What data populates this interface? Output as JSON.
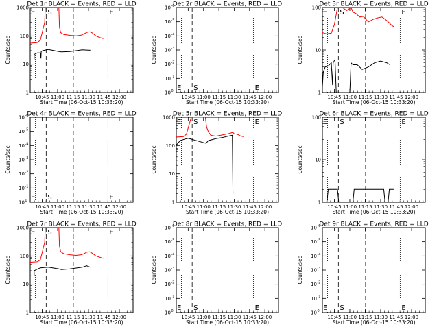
{
  "chart_data": [
    {
      "type": "line",
      "title": "Det 1r BLACK = Events, RED = LLD",
      "xlabel": "Start Time (06-Oct-15 10:33:20)",
      "ylabel": "Counts/sec",
      "yscale": "log",
      "ylim": [
        1,
        1000
      ],
      "yticks": [
        {
          "v": 1,
          "t": "1"
        },
        {
          "v": 10,
          "t": "10"
        },
        {
          "v": 100,
          "t": "100"
        },
        {
          "v": 1000,
          "t": "1000"
        }
      ],
      "xticks": [
        "10:45",
        "11:00",
        "11:15",
        "11:30",
        "11:45",
        "12:00"
      ],
      "markers": {
        "S": "S",
        "E": "E"
      },
      "series": [
        {
          "color": "#ff0000",
          "values": [
            [
              10.55,
              55
            ],
            [
              10.67,
              58
            ],
            [
              10.72,
              70
            ],
            [
              10.79,
              300
            ],
            [
              10.8,
              1000
            ],
            [
              11.02,
              1000
            ],
            [
              11.03,
              200
            ],
            [
              11.05,
              130
            ],
            [
              11.1,
              112
            ],
            [
              11.2,
              105
            ],
            [
              11.3,
              100
            ],
            [
              11.38,
              106
            ],
            [
              11.42,
              116
            ],
            [
              11.47,
              132
            ],
            [
              11.52,
              140
            ],
            [
              11.56,
              128
            ],
            [
              11.62,
              100
            ],
            [
              11.68,
              88
            ],
            [
              11.74,
              80
            ]
          ]
        },
        {
          "color": "#000000",
          "values": [
            [
              10.62,
              15
            ],
            [
              10.62,
              22
            ],
            [
              10.67,
              25
            ],
            [
              10.72,
              25
            ],
            [
              10.73,
              16
            ],
            [
              10.735,
              28
            ],
            [
              10.76,
              30
            ],
            [
              10.85,
              33
            ],
            [
              11.02,
              28
            ],
            [
              11.06,
              27
            ],
            [
              11.2,
              28
            ],
            [
              11.4,
              32
            ],
            [
              11.53,
              31
            ]
          ]
        }
      ]
    },
    {
      "type": "line",
      "title": "Det 2r BLACK = Events, RED = LLD",
      "xlabel": "Start Time (06-Oct-15 10:33:20)",
      "ylabel": "Counts/sec",
      "yscale": "log",
      "ylim": [
        1,
        1e-06
      ],
      "inverted": true,
      "yticks": [
        {
          "v": 1,
          "t": "10",
          "e": "0"
        },
        {
          "v": 0.1,
          "t": "10",
          "e": "-1"
        },
        {
          "v": 0.01,
          "t": "10",
          "e": "-2"
        },
        {
          "v": 0.001,
          "t": "10",
          "e": "-3"
        },
        {
          "v": 0.0001,
          "t": "10",
          "e": "-4"
        },
        {
          "v": 1e-05,
          "t": "10",
          "e": "-5"
        },
        {
          "v": 1e-06,
          "t": "10",
          "e": "-6"
        }
      ],
      "xticks": [
        "10:45",
        "11:00",
        "11:15",
        "11:30",
        "11:45",
        "12:00"
      ],
      "markers": {
        "S": "S",
        "E": "E"
      },
      "series": []
    },
    {
      "type": "line",
      "title": "Det 3r BLACK = Events, RED = LLD",
      "xlabel": "Start Time (06-Oct-15 10:33:20)",
      "ylabel": "Counts/sec",
      "yscale": "log",
      "ylim": [
        1,
        100
      ],
      "yticks": [
        {
          "v": 1,
          "t": "1"
        },
        {
          "v": 10,
          "t": "10"
        },
        {
          "v": 100,
          "t": "100"
        }
      ],
      "xticks": [
        "10:45",
        "11:00",
        "11:15",
        "11:30",
        "11:45",
        "12:00"
      ],
      "markers": {
        "S": "S",
        "E": "E"
      },
      "series": [
        {
          "color": "#ff0000",
          "values": [
            [
              10.55,
              26
            ],
            [
              10.62,
              24
            ],
            [
              10.7,
              25
            ],
            [
              10.75,
              40
            ],
            [
              10.8,
              100
            ],
            [
              10.88,
              100
            ],
            [
              10.95,
              85
            ],
            [
              11.02,
              100
            ],
            [
              11.05,
              78
            ],
            [
              11.1,
              72
            ],
            [
              11.16,
              60
            ],
            [
              11.22,
              62
            ],
            [
              11.3,
              46
            ],
            [
              11.38,
              53
            ],
            [
              11.45,
              57
            ],
            [
              11.52,
              60
            ],
            [
              11.58,
              52
            ],
            [
              11.63,
              45
            ],
            [
              11.68,
              38
            ],
            [
              11.72,
              35
            ]
          ]
        },
        {
          "color": "#000000",
          "values": [
            [
              10.55,
              1
            ],
            [
              10.57,
              3
            ],
            [
              10.6,
              4
            ],
            [
              10.65,
              4.2
            ],
            [
              10.7,
              5
            ],
            [
              10.72,
              1.5
            ],
            [
              10.73,
              5
            ],
            [
              10.76,
              6
            ],
            [
              10.78,
              1
            ],
            [
              11.0,
              1
            ],
            [
              11.02,
              5
            ],
            [
              11.05,
              4.5
            ],
            [
              11.12,
              4.5
            ],
            [
              11.2,
              3.5
            ],
            [
              11.3,
              4
            ],
            [
              11.4,
              5
            ],
            [
              11.5,
              5.5
            ],
            [
              11.6,
              5
            ],
            [
              11.65,
              4.5
            ]
          ]
        }
      ]
    },
    {
      "type": "line",
      "title": "Det 4r BLACK = Events, RED = LLD",
      "xlabel": "Start Time (06-Oct-15 10:33:20)",
      "ylabel": "Counts/sec",
      "yscale": "log",
      "ylim": [
        1,
        1e-06
      ],
      "inverted": true,
      "yticks": [
        {
          "v": 1,
          "t": "10",
          "e": "0"
        },
        {
          "v": 0.1,
          "t": "10",
          "e": "-1"
        },
        {
          "v": 0.01,
          "t": "10",
          "e": "-2"
        },
        {
          "v": 0.001,
          "t": "10",
          "e": "-3"
        },
        {
          "v": 0.0001,
          "t": "10",
          "e": "-4"
        },
        {
          "v": 1e-05,
          "t": "10",
          "e": "-5"
        },
        {
          "v": 1e-06,
          "t": "10",
          "e": "-6"
        }
      ],
      "xticks": [
        "10:45",
        "11:00",
        "11:15",
        "11:30",
        "11:45",
        "12:00"
      ],
      "markers": {
        "S": "S",
        "E": "E"
      },
      "series": []
    },
    {
      "type": "line",
      "title": "Det 5r BLACK = Events, RED = LLD",
      "xlabel": "Start Time (06-Oct-15 10:33:20)",
      "ylabel": "Counts/sec",
      "yscale": "log",
      "ylim": [
        1,
        1000
      ],
      "yticks": [
        {
          "v": 1,
          "t": "1"
        },
        {
          "v": 10,
          "t": "10"
        },
        {
          "v": 100,
          "t": "100"
        },
        {
          "v": 1000,
          "t": "1000"
        }
      ],
      "xticks": [
        "10:45",
        "11:00",
        "11:15",
        "11:30",
        "11:45",
        "12:00"
      ],
      "markers": {
        "S": "S",
        "E": "E"
      },
      "series": [
        {
          "color": "#ff0000",
          "values": [
            [
              10.55,
              200
            ],
            [
              10.67,
              205
            ],
            [
              10.72,
              250
            ],
            [
              10.8,
              1000
            ],
            [
              11.03,
              1000
            ],
            [
              11.05,
              450
            ],
            [
              11.08,
              300
            ],
            [
              11.12,
              230
            ],
            [
              11.2,
              215
            ],
            [
              11.3,
              235
            ],
            [
              11.4,
              260
            ],
            [
              11.45,
              280
            ],
            [
              11.48,
              290
            ],
            [
              11.5,
              260
            ],
            [
              11.55,
              250
            ],
            [
              11.6,
              220
            ],
            [
              11.65,
              205
            ]
          ]
        },
        {
          "color": "#000000",
          "values": [
            [
              10.55,
              100
            ],
            [
              10.62,
              150
            ],
            [
              10.7,
              170
            ],
            [
              10.75,
              180
            ],
            [
              11.04,
              120
            ],
            [
              11.08,
              150
            ],
            [
              11.2,
              175
            ],
            [
              11.3,
              190
            ],
            [
              11.4,
              215
            ],
            [
              11.47,
              230
            ],
            [
              11.48,
              2
            ]
          ]
        }
      ]
    },
    {
      "type": "line",
      "title": "Det 6r BLACK = Events, RED = LLD",
      "xlabel": "Start Time (06-Oct-15 10:33:20)",
      "ylabel": "Counts/sec",
      "yscale": "log",
      "ylim": [
        1,
        100
      ],
      "yticks": [
        {
          "v": 1,
          "t": "1"
        },
        {
          "v": 10,
          "t": "10"
        },
        {
          "v": 100,
          "t": "100"
        }
      ],
      "xticks": [
        "10:45",
        "11:00",
        "11:15",
        "11:30",
        "11:45",
        "12:00"
      ],
      "markers": {
        "S": "S",
        "E": "E"
      },
      "series": [
        {
          "color": "#000000",
          "values": [
            [
              10.63,
              1
            ],
            [
              10.65,
              2
            ],
            [
              10.8,
              2
            ],
            [
              10.82,
              1
            ],
            [
              11.05,
              1
            ],
            [
              11.07,
              2
            ],
            [
              11.55,
              2
            ],
            [
              11.57,
              1
            ],
            [
              11.62,
              1
            ],
            [
              11.64,
              2
            ],
            [
              11.71,
              2
            ]
          ]
        }
      ]
    },
    {
      "type": "line",
      "title": "Det 7r BLACK = Events, RED = LLD",
      "xlabel": "Start Time (06-Oct-15 10:33:20)",
      "ylabel": "Counts/sec",
      "yscale": "log",
      "ylim": [
        1,
        1000
      ],
      "yticks": [
        {
          "v": 1,
          "t": "1"
        },
        {
          "v": 10,
          "t": "10"
        },
        {
          "v": 100,
          "t": "100"
        },
        {
          "v": 1000,
          "t": "1000"
        }
      ],
      "xticks": [
        "10:45",
        "11:00",
        "11:15",
        "11:30",
        "11:45",
        "12:00"
      ],
      "markers": {
        "S": "S",
        "E": "E"
      },
      "series": [
        {
          "color": "#ff0000",
          "values": [
            [
              10.55,
              60
            ],
            [
              10.67,
              62
            ],
            [
              10.72,
              72
            ],
            [
              10.79,
              300
            ],
            [
              10.8,
              1000
            ],
            [
              11.02,
              1000
            ],
            [
              11.03,
              220
            ],
            [
              11.05,
              140
            ],
            [
              11.1,
              120
            ],
            [
              11.2,
              110
            ],
            [
              11.3,
              105
            ],
            [
              11.38,
              110
            ],
            [
              11.42,
              118
            ],
            [
              11.47,
              135
            ],
            [
              11.52,
              140
            ],
            [
              11.56,
              125
            ],
            [
              11.62,
              100
            ],
            [
              11.68,
              90
            ],
            [
              11.74,
              82
            ]
          ]
        },
        {
          "color": "#000000",
          "values": [
            [
              10.62,
              20
            ],
            [
              10.62,
              30
            ],
            [
              10.67,
              34
            ],
            [
              10.72,
              38
            ],
            [
              10.85,
              40
            ],
            [
              11.02,
              35
            ],
            [
              11.06,
              33
            ],
            [
              11.2,
              35
            ],
            [
              11.4,
              40
            ],
            [
              11.47,
              45
            ],
            [
              11.53,
              40
            ]
          ]
        }
      ]
    },
    {
      "type": "line",
      "title": "Det 8r BLACK = Events, RED = LLD",
      "xlabel": "Start Time (06-Oct-15 10:33:20)",
      "ylabel": "Counts/sec",
      "yscale": "log",
      "ylim": [
        1,
        1e-06
      ],
      "inverted": true,
      "yticks": [
        {
          "v": 1,
          "t": "10",
          "e": "0"
        },
        {
          "v": 0.1,
          "t": "10",
          "e": "-1"
        },
        {
          "v": 0.01,
          "t": "10",
          "e": "-2"
        },
        {
          "v": 0.001,
          "t": "10",
          "e": "-3"
        },
        {
          "v": 0.0001,
          "t": "10",
          "e": "-4"
        },
        {
          "v": 1e-05,
          "t": "10",
          "e": "-5"
        },
        {
          "v": 1e-06,
          "t": "10",
          "e": "-6"
        }
      ],
      "xticks": [
        "10:45",
        "11:00",
        "11:15",
        "11:30",
        "11:45",
        "12:00"
      ],
      "markers": {
        "S": "S",
        "E": "E"
      },
      "series": []
    },
    {
      "type": "line",
      "title": "Det 9r BLACK = Events, RED = LLD",
      "xlabel": "Start Time (06-Oct-15 10:33:20)",
      "ylabel": "Counts/sec",
      "yscale": "log",
      "ylim": [
        1,
        1e-06
      ],
      "inverted": true,
      "yticks": [
        {
          "v": 1,
          "t": "10",
          "e": "0"
        },
        {
          "v": 0.1,
          "t": "10",
          "e": "-1"
        },
        {
          "v": 0.01,
          "t": "10",
          "e": "-2"
        },
        {
          "v": 0.001,
          "t": "10",
          "e": "-3"
        },
        {
          "v": 0.0001,
          "t": "10",
          "e": "-4"
        },
        {
          "v": 1e-05,
          "t": "10",
          "e": "-5"
        },
        {
          "v": 1e-06,
          "t": "10",
          "e": "-6"
        }
      ],
      "xticks": [
        "10:45",
        "11:00",
        "11:15",
        "11:30",
        "11:45",
        "12:00"
      ],
      "markers": {
        "S": "S",
        "E": "E"
      },
      "series": []
    }
  ]
}
